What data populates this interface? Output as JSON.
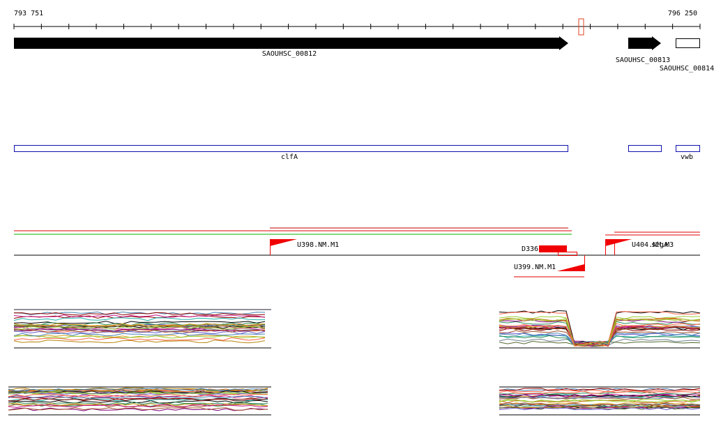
{
  "ruler": {
    "start_label": "793 751",
    "end_label": "796 250"
  },
  "genes": [
    {
      "label": "SAOUHSC_00812"
    },
    {
      "label": "SAOUHSC_00813"
    },
    {
      "label": "SAOUHSC_00814"
    }
  ],
  "gene_names": [
    {
      "label": "clfA"
    },
    {
      "label": "vwb"
    }
  ],
  "features": [
    {
      "label": "U398.NM.M1"
    },
    {
      "label": "D336"
    },
    {
      "label": "U399.NM.M1"
    },
    {
      "label": "U404.NM.M3"
    },
    {
      "label": "sigA"
    }
  ]
}
